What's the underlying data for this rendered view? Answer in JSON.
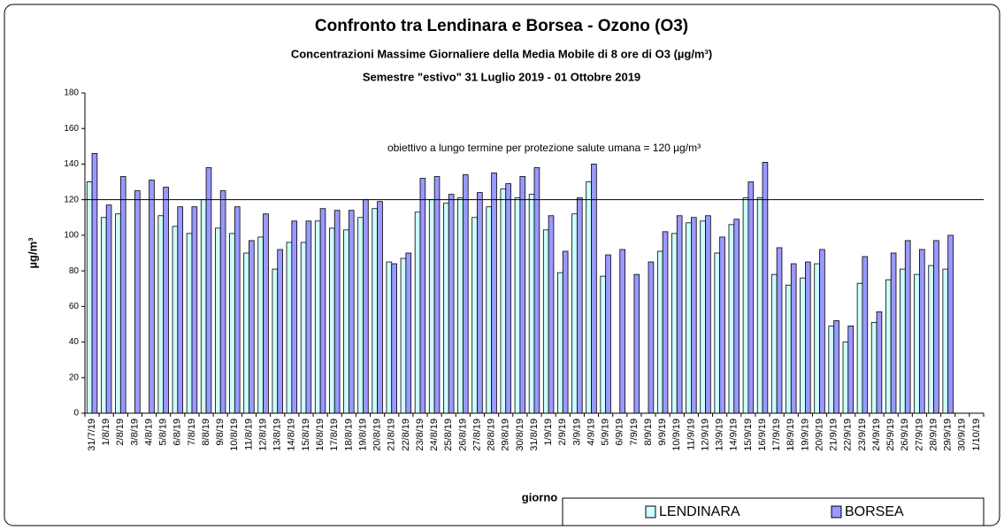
{
  "chart_data": {
    "type": "bar",
    "title": "Confronto tra Lendinara e Borsea - Ozono (O3)",
    "subtitle": "Concentrazioni Massime Giornaliere della Media Mobile di 8 ore di O3 (µg/m³)",
    "subtitle2": "Semestre \"estivo\" 31 Luglio 2019 - 01 Ottobre 2019",
    "y_label": "µg/m³",
    "x_label": "giorno",
    "reference_line": {
      "value": 120,
      "label": "obiettivo a lungo termine per protezione salute umana = 120 µg/m³"
    },
    "categories": [
      "31/7/19",
      "1/8/19",
      "2/8/19",
      "3/8/19",
      "4/8/19",
      "5/8/19",
      "6/8/19",
      "7/8/19",
      "8/8/19",
      "9/8/19",
      "10/8/19",
      "11/8/19",
      "12/8/19",
      "13/8/19",
      "14/8/19",
      "15/8/19",
      "16/8/19",
      "17/8/19",
      "18/8/19",
      "19/8/19",
      "20/8/19",
      "21/8/19",
      "22/8/19",
      "23/8/19",
      "24/8/19",
      "25/8/19",
      "26/8/19",
      "27/8/19",
      "28/8/19",
      "29/8/19",
      "30/8/19",
      "31/8/19",
      "1/9/19",
      "2/9/19",
      "3/9/19",
      "4/9/19",
      "5/9/19",
      "6/9/19",
      "7/9/19",
      "8/9/19",
      "9/9/19",
      "10/9/19",
      "11/9/19",
      "12/9/19",
      "13/9/19",
      "14/9/19",
      "15/9/19",
      "16/9/19",
      "17/9/19",
      "18/9/19",
      "19/9/19",
      "20/9/19",
      "21/9/19",
      "22/9/19",
      "23/9/19",
      "24/9/19",
      "25/9/19",
      "26/9/19",
      "27/9/19",
      "28/9/19",
      "29/9/19",
      "30/9/19",
      "1/10/19"
    ],
    "series": [
      {
        "name": "LENDINARA",
        "color": "#ccffff",
        "values": [
          130,
          110,
          112,
          null,
          null,
          111,
          105,
          101,
          120,
          104,
          101,
          90,
          99,
          81,
          96,
          96,
          108,
          104,
          103,
          110,
          115,
          85,
          87,
          113,
          120,
          118,
          121,
          110,
          116,
          126,
          121,
          123,
          103,
          79,
          112,
          130,
          77,
          null,
          null,
          null,
          91,
          101,
          107,
          108,
          90,
          106,
          121,
          121,
          78,
          72,
          76,
          84,
          49,
          40,
          73,
          51,
          75,
          81,
          78,
          83,
          81,
          null,
          null
        ]
      },
      {
        "name": "BORSEA",
        "color": "#9999ff",
        "values": [
          146,
          117,
          133,
          125,
          131,
          127,
          116,
          116,
          138,
          125,
          116,
          97,
          112,
          92,
          108,
          108,
          115,
          114,
          114,
          120,
          119,
          84,
          90,
          132,
          133,
          123,
          134,
          124,
          135,
          129,
          133,
          138,
          111,
          91,
          121,
          140,
          89,
          92,
          78,
          85,
          102,
          111,
          110,
          111,
          99,
          109,
          130,
          141,
          93,
          84,
          85,
          92,
          52,
          49,
          88,
          57,
          90,
          97,
          92,
          97,
          100,
          null,
          null
        ]
      }
    ],
    "ylim": [
      0,
      180
    ],
    "yticks": [
      0,
      20,
      40,
      60,
      80,
      100,
      120,
      140,
      160,
      180
    ]
  }
}
